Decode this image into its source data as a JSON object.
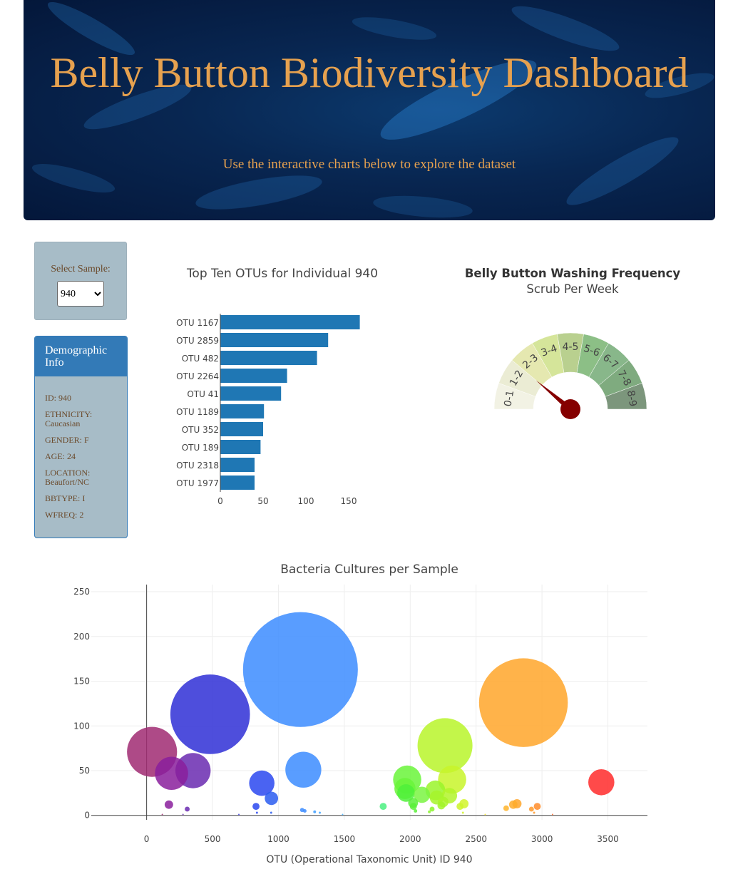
{
  "header": {
    "title": "Belly Button Biodiversity Dashboard",
    "subtitle": "Use the interactive charts below to explore the dataset"
  },
  "select": {
    "label": "Select Sample:",
    "value": "940"
  },
  "demographics": {
    "title": "Demographic Info",
    "rows": [
      "ID: 940",
      "ETHNICITY: Caucasian",
      "GENDER: F",
      "AGE: 24",
      "LOCATION: Beaufort/NC",
      "BBTYPE: I",
      "WFREQ: 2"
    ]
  },
  "chart_data": [
    {
      "type": "bar",
      "orientation": "horizontal",
      "title": "Top Ten OTUs for Individual 940",
      "categories": [
        "OTU 1167",
        "OTU 2859",
        "OTU 482",
        "OTU 2264",
        "OTU 41",
        "OTU 1189",
        "OTU 352",
        "OTU 189",
        "OTU 2318",
        "OTU 1977"
      ],
      "values": [
        163,
        126,
        113,
        78,
        71,
        51,
        50,
        47,
        40,
        40
      ],
      "xticks": [
        0,
        50,
        100,
        150
      ],
      "xlim": [
        0,
        170
      ],
      "color": "#1f77b4"
    },
    {
      "type": "gauge",
      "title": "Belly Button Washing Frequency",
      "subtitle": "Scrub Per Week",
      "segments": [
        "0-1",
        "1-2",
        "2-3",
        "3-4",
        "4-5",
        "5-6",
        "6-7",
        "7-8",
        "8-9"
      ],
      "colors": [
        "#f2f2e4",
        "#ebecd4",
        "#e5e8b0",
        "#d5e59a",
        "#b9d08f",
        "#8cbf86",
        "#88b78a",
        "#7fab7f",
        "#7c967c"
      ],
      "value": 2,
      "needle_color": "#850000"
    },
    {
      "type": "scatter",
      "mode": "bubble",
      "title": "Bacteria Cultures per Sample",
      "xlabel": "OTU (Operational Taxonomic Unit) ID 940",
      "xlim": [
        -420,
        3800
      ],
      "ylim": [
        -5,
        258
      ],
      "xticks": [
        0,
        500,
        1000,
        1500,
        2000,
        2500,
        3000,
        3500
      ],
      "yticks": [
        0,
        50,
        100,
        150,
        200,
        250
      ],
      "points": [
        {
          "x": 1167,
          "y": 163,
          "size": 163,
          "color": "#3c8cff"
        },
        {
          "x": 2859,
          "y": 126,
          "size": 126,
          "color": "#ffa62a"
        },
        {
          "x": 482,
          "y": 113,
          "size": 113,
          "color": "#2f2fd6"
        },
        {
          "x": 2264,
          "y": 78,
          "size": 78,
          "color": "#b8f52a"
        },
        {
          "x": 41,
          "y": 71,
          "size": 71,
          "color": "#a02a72"
        },
        {
          "x": 1189,
          "y": 51,
          "size": 51,
          "color": "#3c8cff"
        },
        {
          "x": 352,
          "y": 50,
          "size": 50,
          "color": "#6a2ab0"
        },
        {
          "x": 189,
          "y": 47,
          "size": 47,
          "color": "#8a1e9c"
        },
        {
          "x": 2318,
          "y": 40,
          "size": 40,
          "color": "#c8f52a"
        },
        {
          "x": 1977,
          "y": 40,
          "size": 40,
          "color": "#6af53a"
        },
        {
          "x": 3450,
          "y": 37,
          "size": 37,
          "color": "#ff2a2a"
        },
        {
          "x": 874,
          "y": 36,
          "size": 36,
          "color": "#2a48f0"
        },
        {
          "x": 1960,
          "y": 30,
          "size": 30,
          "color": "#6af53a"
        },
        {
          "x": 1968,
          "y": 25,
          "size": 25,
          "color": "#4ff03a"
        },
        {
          "x": 2089,
          "y": 23,
          "size": 23,
          "color": "#7af542"
        },
        {
          "x": 2191,
          "y": 28,
          "size": 28,
          "color": "#9af52a"
        },
        {
          "x": 2201,
          "y": 20,
          "size": 20,
          "color": "#a6f52a"
        },
        {
          "x": 2297,
          "y": 22,
          "size": 22,
          "color": "#b2f52a"
        },
        {
          "x": 947,
          "y": 19,
          "size": 19,
          "color": "#2a5cf0"
        },
        {
          "x": 2250,
          "y": 15,
          "size": 15,
          "color": "#aaf52a"
        },
        {
          "x": 2408,
          "y": 13,
          "size": 13,
          "color": "#d2f52a"
        },
        {
          "x": 2378,
          "y": 10,
          "size": 10,
          "color": "#ccf52a"
        },
        {
          "x": 2810,
          "y": 13,
          "size": 13,
          "color": "#ffa62a"
        },
        {
          "x": 2782,
          "y": 12,
          "size": 12,
          "color": "#ffac2a"
        },
        {
          "x": 2964,
          "y": 10,
          "size": 10,
          "color": "#ff8c2a"
        },
        {
          "x": 2728,
          "y": 8,
          "size": 8,
          "color": "#ffb42a"
        },
        {
          "x": 2920,
          "y": 7,
          "size": 7,
          "color": "#ff9a2a"
        },
        {
          "x": 1795,
          "y": 10,
          "size": 10,
          "color": "#4af080"
        },
        {
          "x": 2024,
          "y": 10,
          "size": 10,
          "color": "#5af03a"
        },
        {
          "x": 2022,
          "y": 14,
          "size": 14,
          "color": "#5af03a"
        },
        {
          "x": 2236,
          "y": 11,
          "size": 11,
          "color": "#a2f52a"
        },
        {
          "x": 2166,
          "y": 7,
          "size": 7,
          "color": "#8af52a"
        },
        {
          "x": 169,
          "y": 12,
          "size": 12,
          "color": "#8a1e9c"
        },
        {
          "x": 308,
          "y": 7,
          "size": 7,
          "color": "#6a2ab0"
        },
        {
          "x": 830,
          "y": 10,
          "size": 10,
          "color": "#2a48f0"
        },
        {
          "x": 1180,
          "y": 6,
          "size": 6,
          "color": "#3c8cff"
        },
        {
          "x": 1200,
          "y": 5,
          "size": 5,
          "color": "#3c8cff"
        },
        {
          "x": 1275,
          "y": 4,
          "size": 4,
          "color": "#3c9cff"
        },
        {
          "x": 1314,
          "y": 3,
          "size": 3,
          "color": "#3ca2ff"
        },
        {
          "x": 2040,
          "y": 5,
          "size": 5,
          "color": "#5af03a"
        },
        {
          "x": 2145,
          "y": 4,
          "size": 4,
          "color": "#88f52a"
        },
        {
          "x": 2400,
          "y": 3,
          "size": 3,
          "color": "#d2f52a"
        },
        {
          "x": 2940,
          "y": 3,
          "size": 3,
          "color": "#ff9a2a"
        },
        {
          "x": 837,
          "y": 3,
          "size": 3,
          "color": "#2a48f0"
        },
        {
          "x": 945,
          "y": 3,
          "size": 3,
          "color": "#2a5cf0"
        },
        {
          "x": 119,
          "y": 1,
          "size": 1,
          "color": "#a02a72"
        },
        {
          "x": 276,
          "y": 1,
          "size": 1,
          "color": "#6a2ab0"
        },
        {
          "x": 700,
          "y": 1,
          "size": 1,
          "color": "#3a3ae0"
        },
        {
          "x": 1487,
          "y": 1,
          "size": 1,
          "color": "#3caeff"
        },
        {
          "x": 2569,
          "y": 1,
          "size": 1,
          "color": "#f5e52a"
        },
        {
          "x": 3080,
          "y": 1,
          "size": 1,
          "color": "#ff6a2a"
        }
      ]
    }
  ]
}
